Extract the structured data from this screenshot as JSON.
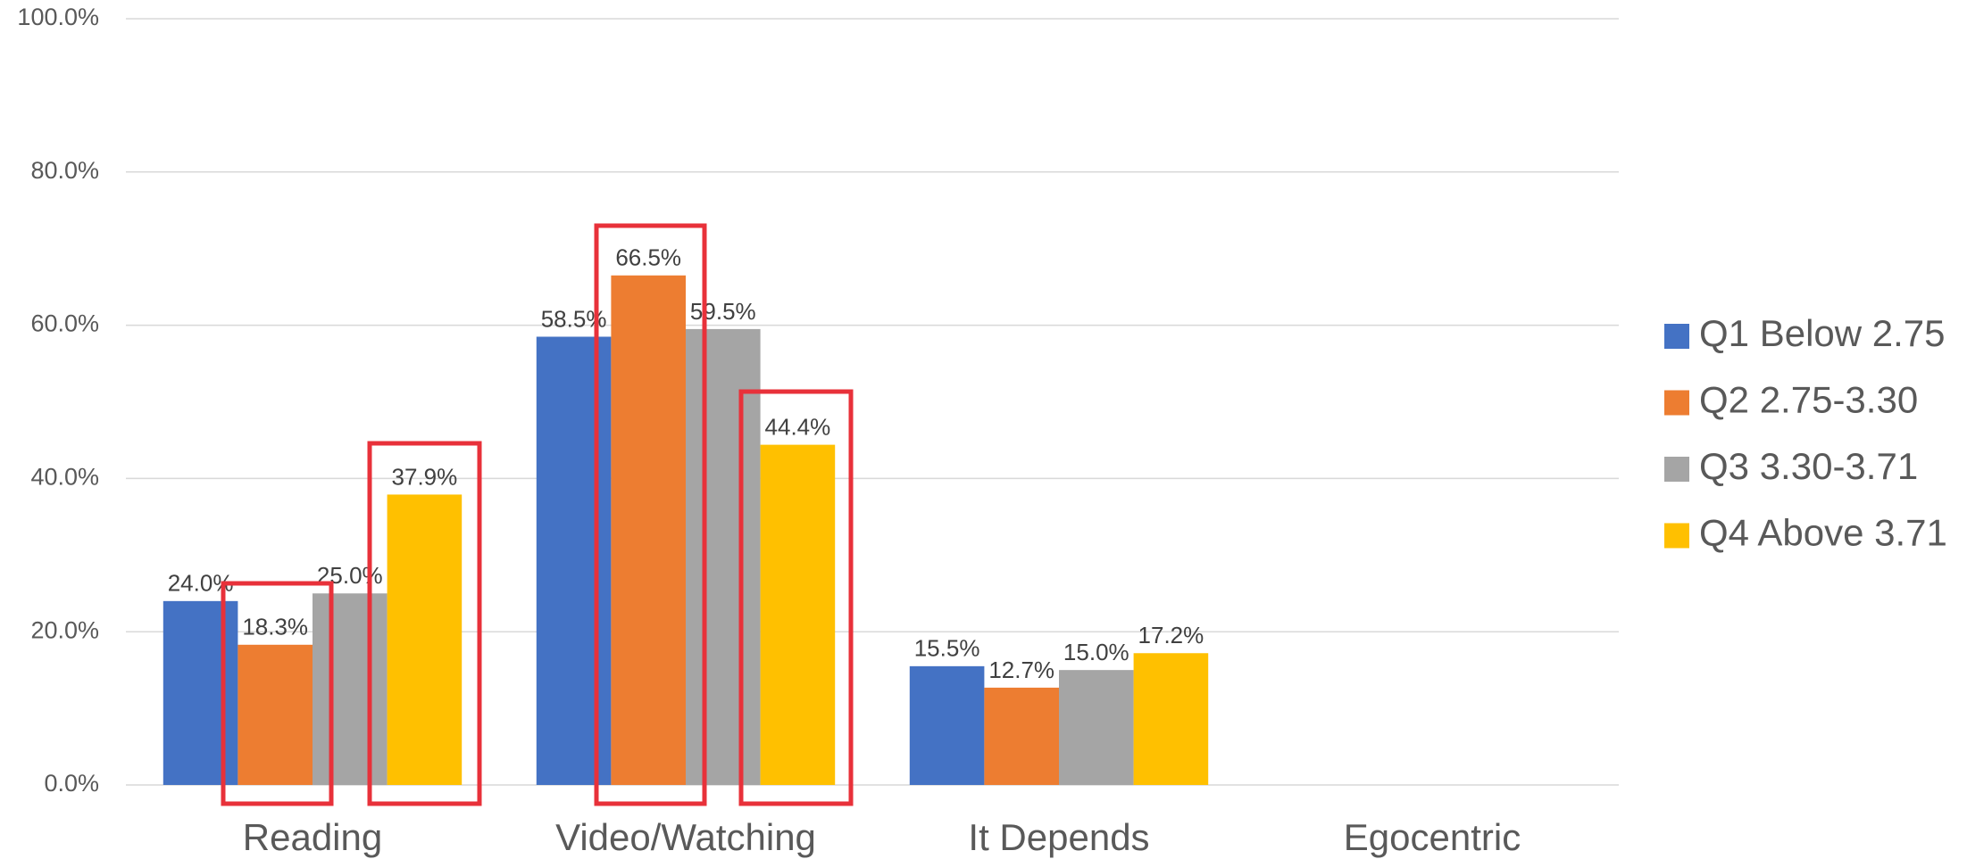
{
  "chart_data": {
    "type": "bar",
    "categories": [
      "Reading",
      "Video/Watching",
      "It Depends",
      "Egocentric"
    ],
    "series": [
      {
        "name": "Q1 Below 2.75",
        "color": "#4472c4",
        "values": [
          24.0,
          58.5,
          15.5,
          null
        ],
        "value_labels": [
          "24.0%",
          "58.5%",
          "15.5%",
          null
        ]
      },
      {
        "name": "Q2 2.75-3.30",
        "color": "#ed7d31",
        "values": [
          18.3,
          66.5,
          12.7,
          null
        ],
        "value_labels": [
          "18.3%",
          "66.5%",
          "12.7%",
          null
        ]
      },
      {
        "name": "Q3 3.30-3.71",
        "color": "#a5a5a5",
        "values": [
          25.0,
          59.5,
          15.0,
          null
        ],
        "value_labels": [
          "25.0%",
          "59.5%",
          "15.0%",
          null
        ]
      },
      {
        "name": "Q4 Above 3.71",
        "color": "#ffc000",
        "values": [
          37.9,
          44.4,
          17.2,
          null
        ],
        "value_labels": [
          "37.9%",
          "44.4%",
          "17.2%",
          null
        ]
      }
    ],
    "ylim": [
      0,
      100
    ],
    "yticks": [
      {
        "value": 0,
        "label": "0.0%"
      },
      {
        "value": 20,
        "label": "20.0%"
      },
      {
        "value": 40,
        "label": "40.0%"
      },
      {
        "value": 60,
        "label": "60.0%"
      },
      {
        "value": 80,
        "label": "80.0%"
      },
      {
        "value": 100,
        "label": "100.0%"
      }
    ],
    "grid": true,
    "legend": "right"
  }
}
